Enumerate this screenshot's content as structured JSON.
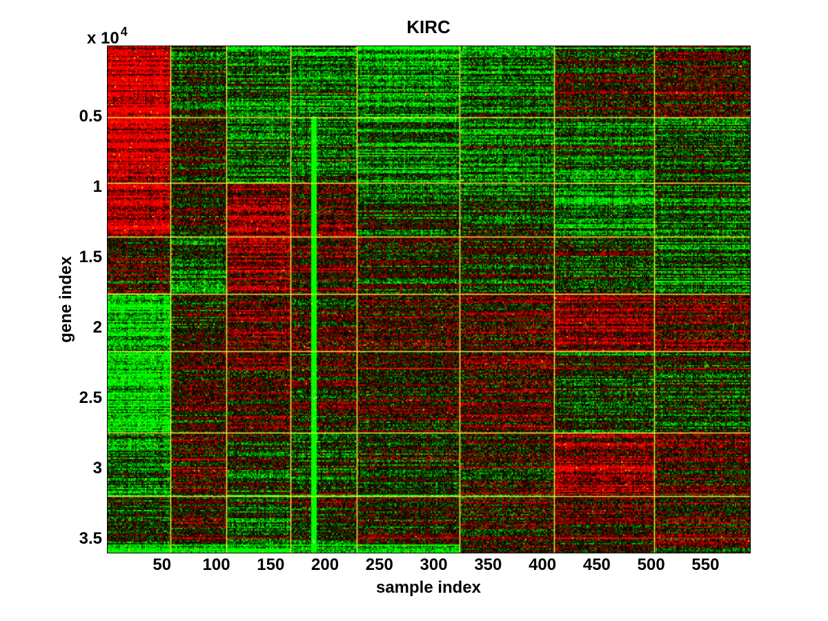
{
  "chart_data": {
    "type": "heatmap",
    "title": "KIRC",
    "xlabel": "sample index",
    "ylabel": "gene index",
    "y_multiplier_label": "x 10",
    "y_multiplier_exponent": "4",
    "x_range": [
      0,
      591
    ],
    "y_range": [
      0,
      36000
    ],
    "x_ticks": [
      50,
      100,
      150,
      200,
      250,
      300,
      350,
      400,
      450,
      500,
      550
    ],
    "x_tick_labels": [
      "50",
      "100",
      "150",
      "200",
      "250",
      "300",
      "350",
      "400",
      "450",
      "500",
      "550"
    ],
    "y_ticks": [
      5000,
      10000,
      15000,
      20000,
      25000,
      30000,
      35000
    ],
    "y_tick_labels": [
      "0.5",
      "1",
      "1.5",
      "2",
      "2.5",
      "3",
      "3.5"
    ],
    "grid_on": true,
    "legend": "none",
    "colormap": {
      "positive_high": "#ff0000",
      "zero": "#000000",
      "negative_high": "#00ff00",
      "grid_line": "#f0ee3a",
      "background": "#ffffff",
      "axis_text": "#000000"
    },
    "column_cluster_boundaries_sample": [
      58,
      109,
      168,
      229,
      324,
      411,
      503
    ],
    "row_cluster_boundaries_gene": [
      5050,
      9700,
      13550,
      17600,
      21700,
      27450,
      32000
    ],
    "bright_green_column_sample": 190,
    "block_mean_expression_rows_x_cols": [
      [
        0.85,
        -0.1,
        -0.3,
        -0.45,
        -0.55,
        -0.4,
        0.05,
        0.15
      ],
      [
        0.9,
        -0.05,
        -0.35,
        -0.2,
        -0.5,
        -0.4,
        -0.35,
        -0.2
      ],
      [
        0.8,
        0.1,
        0.55,
        0.3,
        -0.2,
        -0.15,
        -0.45,
        -0.35
      ],
      [
        0.15,
        -0.3,
        0.5,
        0.3,
        -0.05,
        0.05,
        -0.1,
        -0.3
      ],
      [
        -0.8,
        -0.05,
        0.3,
        0.1,
        0.15,
        0.2,
        0.55,
        0.3
      ],
      [
        -0.8,
        0.05,
        0.2,
        0.05,
        0.15,
        0.25,
        -0.1,
        -0.1
      ],
      [
        -0.35,
        0.2,
        -0.15,
        -0.2,
        -0.1,
        0.1,
        0.5,
        0.1
      ],
      [
        -0.15,
        0.15,
        -0.2,
        -0.15,
        0.05,
        0.1,
        0.15,
        0.2
      ]
    ]
  }
}
